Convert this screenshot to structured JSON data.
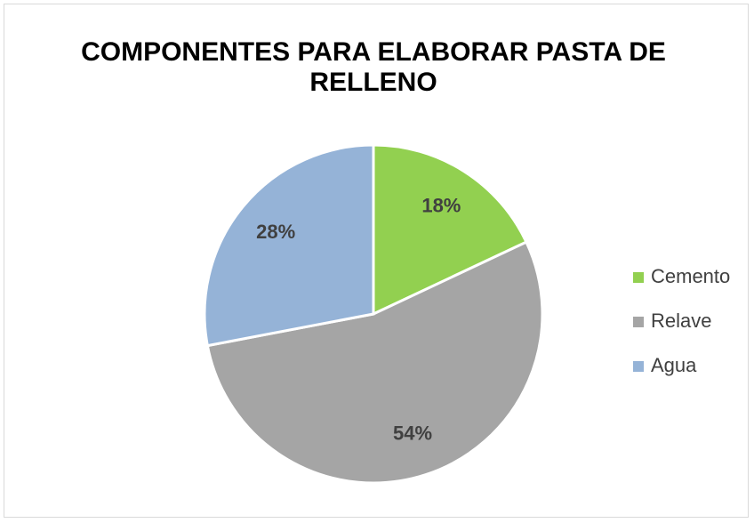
{
  "chart_data": {
    "type": "pie",
    "title": "COMPONENTES PARA ELABORAR PASTA DE RELLENO",
    "categories": [
      "Cemento",
      "Relave",
      "Agua"
    ],
    "values": [
      18,
      54,
      28
    ],
    "value_labels": [
      "18%",
      "54%",
      "28%"
    ],
    "colors": [
      "#92d050",
      "#a5a5a5",
      "#95b3d7"
    ],
    "legend": "right"
  }
}
